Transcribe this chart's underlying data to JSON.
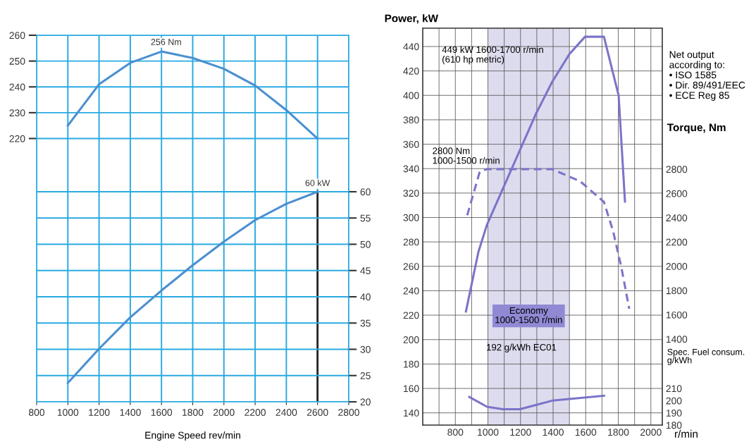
{
  "chart_data": [
    {
      "type": "line",
      "xlabel": "Engine Speed rev/min",
      "x": [
        1000,
        1200,
        1400,
        1600,
        1800,
        2000,
        2200,
        2400,
        2600
      ],
      "xlim": [
        800,
        2800
      ],
      "xticks": [
        800,
        1000,
        1200,
        1400,
        1600,
        1800,
        2000,
        2200,
        2400,
        2600,
        2800
      ],
      "ylim": [
        118,
        260
      ],
      "yticks": [
        220,
        230,
        240,
        250,
        260
      ],
      "y2lim": [
        20,
        89.8
      ],
      "y2ticks": [
        20,
        25,
        30,
        35,
        40,
        45,
        50,
        55,
        60
      ],
      "grid": true,
      "series": [
        {
          "color": "#4a8fd0",
          "values": [
            225,
            241,
            249.3,
            253.7,
            251.2,
            247,
            240.5,
            231,
            220
          ]
        },
        {
          "color": "#4a8fd0",
          "axis": "y2",
          "values": [
            23.6,
            30.1,
            36.1,
            41.2,
            46,
            50.5,
            54.6,
            57.7,
            60
          ]
        }
      ],
      "annotations": [
        {
          "text": "256 Nm",
          "x": 1630,
          "y": 254
        },
        "60 kW"
      ],
      "ref_lines": [
        {
          "axis": "x",
          "value": 2600,
          "color": "#222222"
        }
      ]
    },
    {
      "type": "line",
      "xlabel": "r/min",
      "ylabel": "Power, kW",
      "y2label": "Torque, Nm",
      "y3label": "Spec. Fuel consum.\ng/kWh",
      "xlim": [
        600,
        2070
      ],
      "xticks": [
        {
          "value": 700,
          "label": null
        },
        800,
        {
          "value": 900,
          "label": null
        },
        1000,
        {
          "value": 1100,
          "label": null
        },
        1200,
        {
          "value": 1300,
          "label": null
        },
        1400,
        {
          "value": 1500,
          "label": null
        },
        1600,
        {
          "value": 1700,
          "label": null
        },
        1800,
        {
          "value": 1900,
          "label": null
        },
        2000
      ],
      "ylim": [
        130,
        455
      ],
      "yticks": [
        140,
        160,
        180,
        200,
        220,
        240,
        260,
        280,
        300,
        320,
        340,
        360,
        380,
        400,
        420,
        440
      ],
      "y2lim": [
        691,
        3962
      ],
      "y2ticks": [
        1400,
        1600,
        1800,
        2000,
        2200,
        2400,
        2600,
        2800
      ],
      "y3lim": [
        180,
        505
      ],
      "y3ticks": [
        180,
        190,
        200,
        210
      ],
      "grid": true,
      "series": [
        {
          "color": "#7b74c9",
          "x": [
            865,
            942,
            994,
            1295,
            1394,
            1501,
            1596,
            1712,
            1802,
            1841
          ],
          "values": [
            223,
            272,
            294,
            385,
            411,
            434,
            448,
            448,
            400,
            313
          ]
        },
        {
          "color": "#7b74c9",
          "axis": "y2",
          "line_style": "dashed",
          "x": [
            873,
            950,
            994,
            1394,
            1566,
            1712,
            1768,
            1819,
            1867
          ],
          "values": [
            2420,
            2780,
            2800,
            2800,
            2700,
            2530,
            2290,
            1990,
            1650
          ]
        },
        {
          "color": "#7b74c9",
          "axis": "y3",
          "x": [
            886,
            994,
            1092,
            1196,
            1394,
            1712
          ],
          "values": [
            203,
            195,
            193,
            193,
            200,
            204
          ]
        }
      ],
      "bands": [
        {
          "axis": "x",
          "from": 1000,
          "to": 1500,
          "label": "Economy\n1000-1500 r/min",
          "color": "#dddcef"
        }
      ],
      "annotations": [
        "449 kW 1600-1700 r/min\n(610 hp metric)",
        "2800 Nm\n1000-1500 r/min",
        "192 g/kWh EC01",
        "Net output\naccording to:\n• ISO 1585\n• Dir. 89/491/EEC\n• ECE Reg 85"
      ]
    }
  ]
}
